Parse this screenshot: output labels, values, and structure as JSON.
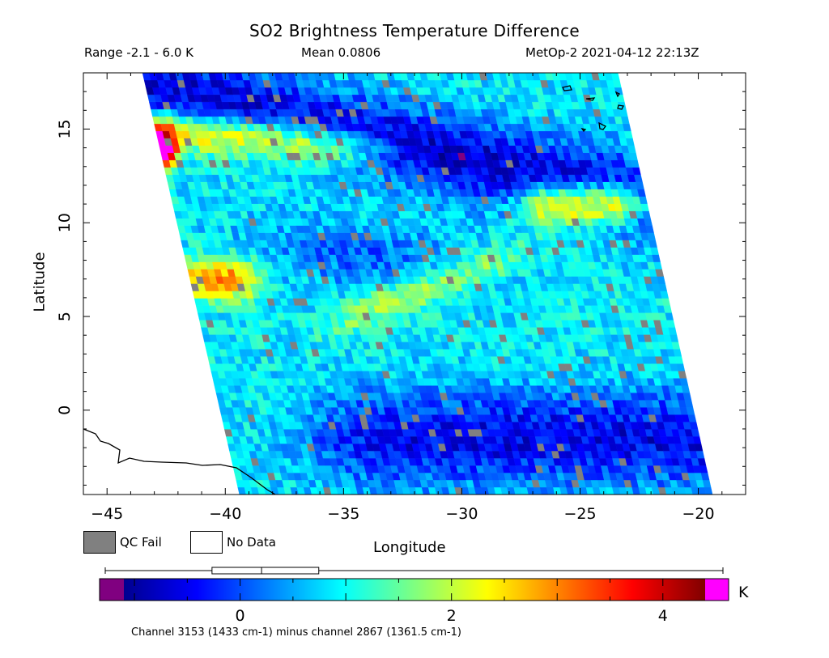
{
  "header": {
    "title": "SO2 Brightness Temperature Difference",
    "range": "Range -2.1 - 6.0 K",
    "mean": "Mean 0.0806",
    "satellite_time": "MetOp-2 2021-04-12 22:13Z"
  },
  "legend": {
    "qc_fail": "QC Fail",
    "no_data": "No Data",
    "qc_fail_color": "#808080",
    "no_data_color": "#ffffff"
  },
  "colorbar": {
    "unit": "K",
    "min": -1.1,
    "max": 4.4,
    "ticks": [
      0,
      2,
      4
    ],
    "under_color": "#800080",
    "over_color": "#ff00ff",
    "boxplot": {
      "whisker_low": -2.1,
      "q1": -0.7,
      "median": -0.05,
      "q3": 0.7,
      "whisker_high": 6.0
    }
  },
  "footer": "Channel 3153 (1433 cm-1) minus channel 2867 (1361.5 cm-1)",
  "chart_data": {
    "type": "heatmap",
    "title": "SO2 Brightness Temperature Difference",
    "xlabel": "Longitude",
    "ylabel": "Latitude",
    "xlim": [
      -46,
      -18
    ],
    "ylim": [
      -4.5,
      18
    ],
    "xticks": [
      -45,
      -40,
      -35,
      -30,
      -25,
      -20
    ],
    "yticks": [
      0,
      5,
      10,
      15
    ],
    "value_unit": "K",
    "swath_corners": [
      [
        -43.5,
        18
      ],
      [
        -23.4,
        18
      ],
      [
        -19.4,
        -4.5
      ],
      [
        -39.4,
        -4.5
      ]
    ],
    "features": [
      {
        "lat": 14.5,
        "lon_from": -43.5,
        "lon_to": -34,
        "value": 3.0
      },
      {
        "lat": 14.0,
        "lon_from": -43.4,
        "lon_to": -42.5,
        "value": 5.0
      },
      {
        "lat": 11.0,
        "lon_from": -27,
        "lon_to": -22.5,
        "value": 3.5
      },
      {
        "lat": 7.0,
        "lon_from": -41.5,
        "lon_to": -39,
        "value": 3.0
      },
      {
        "lat": 6.5,
        "lon_from": -35,
        "lon_to": -28,
        "value": 2.0
      },
      {
        "lat": 14.0,
        "lon_from": -33,
        "lon_to": -26,
        "value": -0.9
      },
      {
        "lat": -1.5,
        "lon_from": -34,
        "lon_to": -22,
        "value": -0.9
      }
    ]
  }
}
